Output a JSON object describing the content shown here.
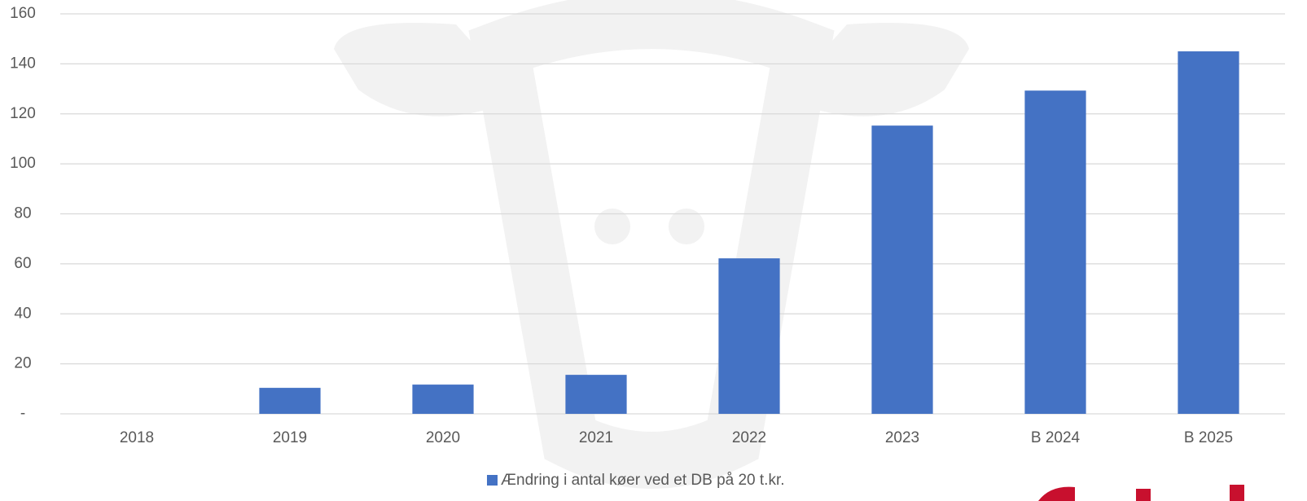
{
  "chart_data": {
    "type": "bar",
    "categories": [
      "2018",
      "2019",
      "2020",
      "2021",
      "2022",
      "2023",
      "B 2024",
      "B 2025"
    ],
    "series": [
      {
        "name": "Ændring i antal køer ved et DB på 20 t.kr.",
        "color": "#4472c4",
        "values": [
          0,
          10.4,
          11.7,
          15.6,
          62.2,
          115.3,
          129.3,
          145
        ]
      }
    ],
    "ylim": [
      0,
      160
    ],
    "yticks": [
      {
        "value": 0,
        "label": "-"
      },
      20,
      40,
      60,
      80,
      100,
      120,
      140,
      160
    ],
    "grid": true,
    "legend": "bottom"
  }
}
